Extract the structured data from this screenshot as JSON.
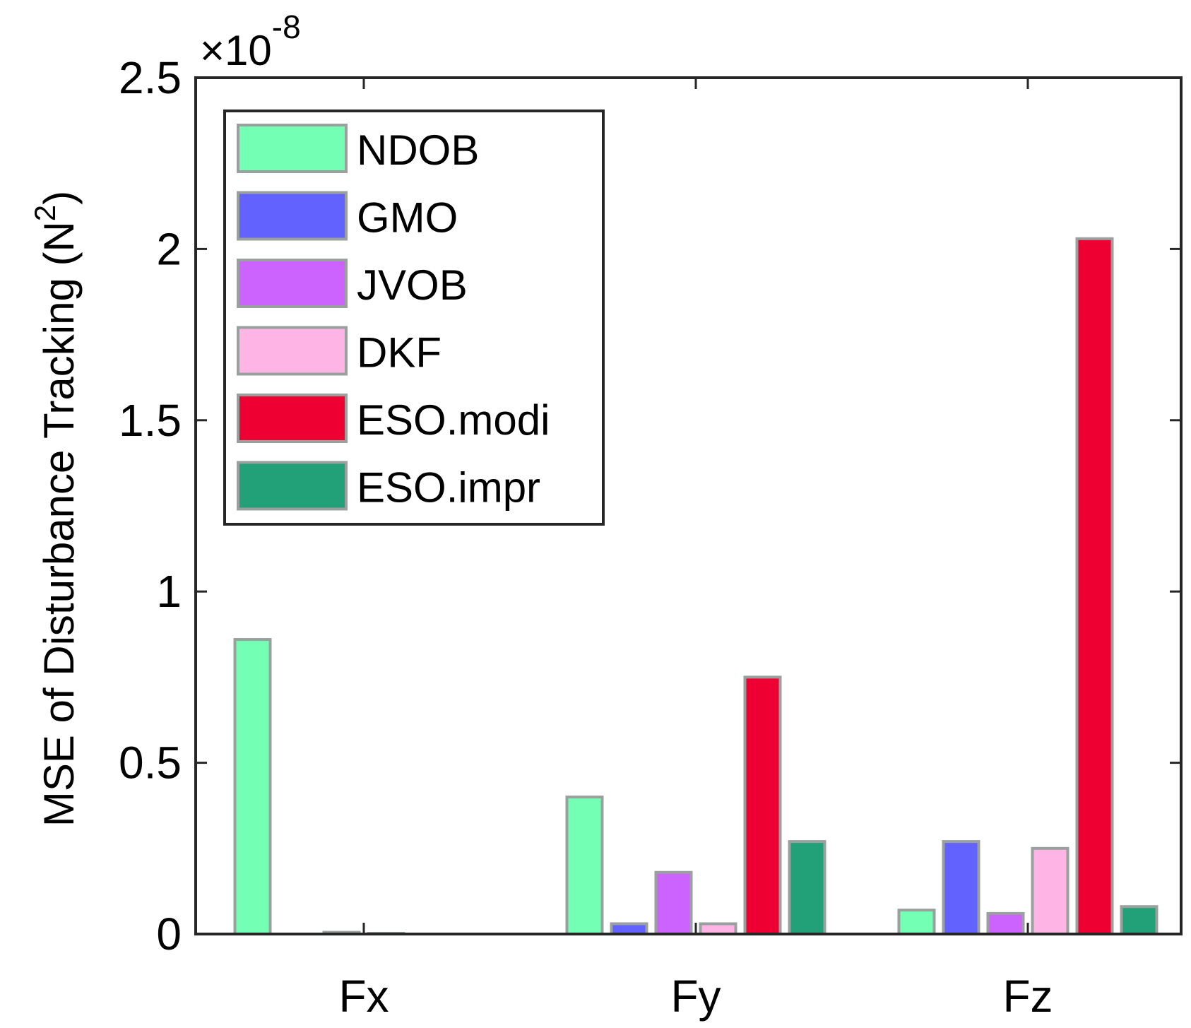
{
  "chart_data": {
    "type": "bar",
    "title": "",
    "xlabel": "",
    "ylabel": "MSE of Disturbance Tracking (N",
    "ylabel_sup": "2",
    "ylabel_close": ")",
    "y_exponent_prefix": "×10",
    "y_exponent_power": "-8",
    "ylim": [
      0,
      2.5
    ],
    "yticks": [
      0,
      0.5,
      1,
      1.5,
      2,
      2.5
    ],
    "ytick_labels": [
      "0",
      "0.5",
      "1",
      "1.5",
      "2",
      "2.5"
    ],
    "categories": [
      "Fx",
      "Fy",
      "Fz"
    ],
    "grid": false,
    "legend_position": "top-left",
    "series": [
      {
        "name": "NDOB",
        "color": "#73FFB4",
        "values": [
          0.86,
          0.4,
          0.07
        ]
      },
      {
        "name": "GMO",
        "color": "#6262FF",
        "values": [
          0.0,
          0.03,
          0.27
        ]
      },
      {
        "name": "JVOB",
        "color": "#CC63FF",
        "values": [
          0.005,
          0.18,
          0.06
        ]
      },
      {
        "name": "DKF",
        "color": "#FFB4E6",
        "values": [
          0.002,
          0.03,
          0.25
        ]
      },
      {
        "name": "ESO.modi",
        "color": "#EE0033",
        "values": [
          0.0,
          0.75,
          2.03
        ]
      },
      {
        "name": "ESO.impr",
        "color": "#22A077",
        "values": [
          0.0,
          0.27,
          0.08
        ]
      }
    ],
    "bar_edge_color": "#9AA09E"
  }
}
